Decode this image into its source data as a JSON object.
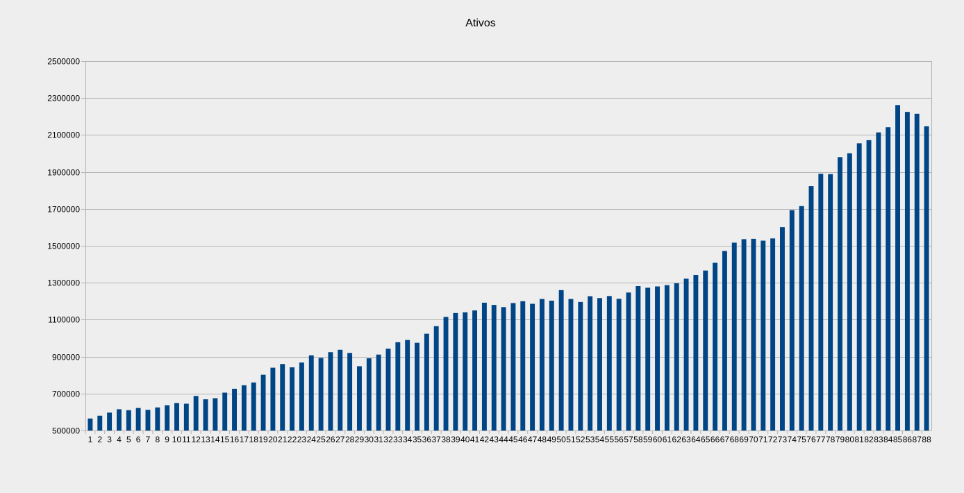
{
  "chart_data": {
    "type": "bar",
    "title": "Ativos",
    "xlabel": "",
    "ylabel": "",
    "ylim": [
      500000,
      2500000
    ],
    "yticks": [
      500000,
      700000,
      900000,
      1100000,
      1300000,
      1500000,
      1700000,
      1900000,
      2100000,
      2300000,
      2500000
    ],
    "grid": true,
    "legend": "none",
    "bar_color": "#004586",
    "categories": [
      "1",
      "2",
      "3",
      "4",
      "5",
      "6",
      "7",
      "8",
      "9",
      "10",
      "11",
      "12",
      "13",
      "14",
      "15",
      "16",
      "17",
      "18",
      "19",
      "20",
      "21",
      "22",
      "23",
      "24",
      "25",
      "26",
      "27",
      "28",
      "29",
      "30",
      "31",
      "32",
      "33",
      "34",
      "35",
      "36",
      "37",
      "38",
      "39",
      "40",
      "41",
      "42",
      "43",
      "44",
      "45",
      "46",
      "47",
      "48",
      "49",
      "50",
      "51",
      "52",
      "53",
      "54",
      "55",
      "56",
      "57",
      "58",
      "59",
      "60",
      "61",
      "62",
      "63",
      "64",
      "65",
      "66",
      "67",
      "68",
      "69",
      "70",
      "71",
      "72",
      "73",
      "74",
      "75",
      "76",
      "77",
      "78",
      "79",
      "80",
      "81",
      "82",
      "83",
      "84",
      "85",
      "86",
      "87",
      "88"
    ],
    "values": [
      565000,
      580000,
      597000,
      615000,
      610000,
      622000,
      612000,
      625000,
      637000,
      649000,
      645000,
      687000,
      669000,
      675000,
      705000,
      726000,
      745000,
      760000,
      802000,
      840000,
      860000,
      842000,
      868000,
      907000,
      893000,
      924000,
      937000,
      920000,
      848000,
      891000,
      911000,
      943000,
      978000,
      990000,
      975000,
      1024000,
      1065000,
      1115000,
      1136000,
      1140000,
      1150000,
      1192000,
      1180000,
      1168000,
      1190000,
      1200000,
      1186000,
      1212000,
      1203000,
      1260000,
      1212000,
      1196000,
      1227000,
      1217000,
      1228000,
      1213000,
      1247000,
      1282000,
      1273000,
      1280000,
      1287000,
      1297000,
      1322000,
      1342000,
      1366000,
      1408000,
      1472000,
      1517000,
      1536000,
      1538000,
      1528000,
      1540000,
      1601000,
      1693000,
      1715000,
      1823000,
      1890000,
      1888000,
      1980000,
      2001000,
      2055000,
      2072000,
      2114000,
      2142000,
      2262000,
      2225000,
      2215000,
      2147000
    ]
  }
}
